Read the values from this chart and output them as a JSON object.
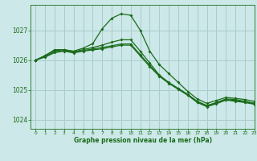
{
  "title": "Graphe pression niveau de la mer (hPa)",
  "bg_color": "#cce8e8",
  "grid_color": "#aacccc",
  "line_color": "#1a6b1a",
  "xlim": [
    -0.5,
    23
  ],
  "ylim": [
    1023.7,
    1027.85
  ],
  "yticks": [
    1024,
    1025,
    1026,
    1027
  ],
  "xticks": [
    0,
    1,
    2,
    3,
    4,
    5,
    6,
    7,
    8,
    9,
    10,
    11,
    12,
    13,
    14,
    15,
    16,
    17,
    18,
    19,
    20,
    21,
    22,
    23
  ],
  "series": [
    [
      1026.0,
      1026.15,
      1026.35,
      1026.35,
      1026.3,
      1026.4,
      1026.55,
      1027.05,
      1027.4,
      1027.55,
      1027.5,
      1027.0,
      1026.3,
      1025.85,
      1025.55,
      1025.25,
      1024.95,
      1024.7,
      1024.55,
      1024.65,
      1024.75,
      1024.72,
      1024.68,
      1024.62
    ],
    [
      1026.0,
      1026.15,
      1026.32,
      1026.35,
      1026.28,
      1026.35,
      1026.42,
      1026.5,
      1026.6,
      1026.68,
      1026.68,
      1026.3,
      1025.9,
      1025.5,
      1025.25,
      1025.05,
      1024.85,
      1024.62,
      1024.48,
      1024.58,
      1024.7,
      1024.68,
      1024.62,
      1024.56
    ],
    [
      1026.0,
      1026.12,
      1026.28,
      1026.32,
      1026.26,
      1026.32,
      1026.37,
      1026.42,
      1026.48,
      1026.54,
      1026.54,
      1026.18,
      1025.82,
      1025.48,
      1025.24,
      1025.04,
      1024.84,
      1024.6,
      1024.46,
      1024.56,
      1024.68,
      1024.65,
      1024.6,
      1024.54
    ],
    [
      1026.0,
      1026.1,
      1026.25,
      1026.3,
      1026.24,
      1026.3,
      1026.34,
      1026.38,
      1026.44,
      1026.5,
      1026.5,
      1026.14,
      1025.78,
      1025.46,
      1025.22,
      1025.02,
      1024.82,
      1024.58,
      1024.44,
      1024.54,
      1024.66,
      1024.62,
      1024.58,
      1024.52
    ]
  ]
}
